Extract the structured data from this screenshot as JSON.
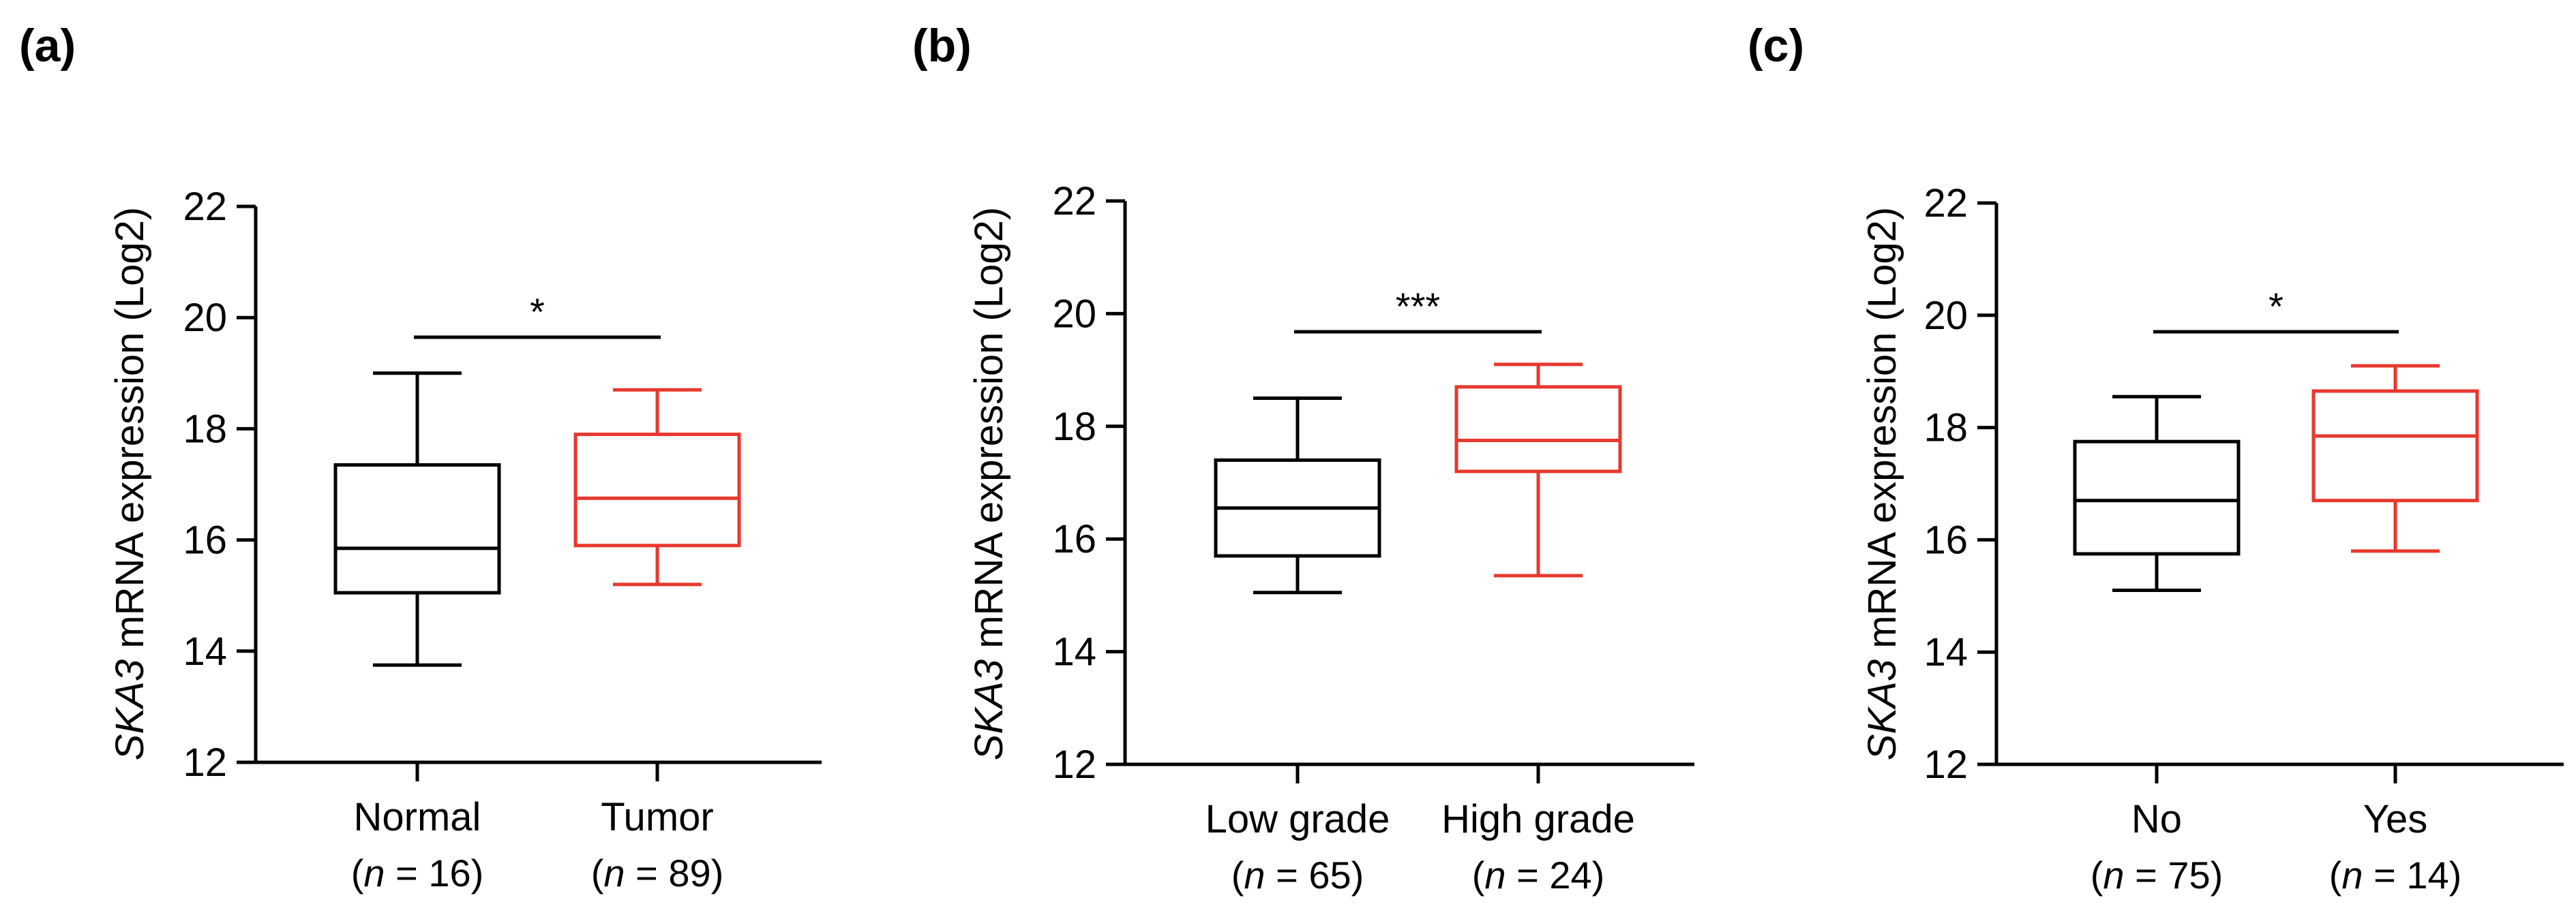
{
  "chart_data": [
    {
      "type": "box",
      "panel": "(a)",
      "ylabel_gene": "SKA3",
      "ylabel_rest": " mRNA expression (Log2)",
      "ylim": [
        12,
        22
      ],
      "yticks": [
        12,
        14,
        16,
        18,
        20,
        22
      ],
      "significance": "*",
      "groups": [
        {
          "name": "Normal",
          "n_prefix": "(",
          "n_italic": "n",
          "n_suffix": " = 16)",
          "color": "#000000",
          "whisker_low": 13.75,
          "q1": 15.05,
          "median": 15.85,
          "q3": 17.35,
          "whisker_high": 19.0
        },
        {
          "name": "Tumor",
          "n_prefix": "(",
          "n_italic": "n",
          "n_suffix": " = 89)",
          "color": "#e8382d",
          "whisker_low": 15.2,
          "q1": 15.9,
          "median": 16.75,
          "q3": 17.9,
          "whisker_high": 18.7
        }
      ]
    },
    {
      "type": "box",
      "panel": "(b)",
      "ylabel_gene": "SKA3",
      "ylabel_rest": " mRNA expression (Log2)",
      "ylim": [
        12,
        22
      ],
      "yticks": [
        12,
        14,
        16,
        18,
        20,
        22
      ],
      "significance": "***",
      "groups": [
        {
          "name": "Low grade",
          "n_prefix": "(",
          "n_italic": "n",
          "n_suffix": " = 65)",
          "color": "#000000",
          "whisker_low": 15.05,
          "q1": 15.7,
          "median": 16.55,
          "q3": 17.4,
          "whisker_high": 18.5
        },
        {
          "name": "High grade",
          "n_prefix": "(",
          "n_italic": "n",
          "n_suffix": " = 24)",
          "color": "#e8382d",
          "whisker_low": 15.35,
          "q1": 17.2,
          "median": 17.75,
          "q3": 18.7,
          "whisker_high": 19.1
        }
      ]
    },
    {
      "type": "box",
      "panel": "(c)",
      "ylabel_gene": "SKA3",
      "ylabel_rest": " mRNA expression (Log2)",
      "ylim": [
        12,
        22
      ],
      "yticks": [
        12,
        14,
        16,
        18,
        20,
        22
      ],
      "significance": "*",
      "groups": [
        {
          "name": "No",
          "n_prefix": "(",
          "n_italic": "n",
          "n_suffix": " = 75)",
          "color": "#000000",
          "whisker_low": 15.1,
          "q1": 15.75,
          "median": 16.7,
          "q3": 17.75,
          "whisker_high": 18.55
        },
        {
          "name": "Yes",
          "n_prefix": "(",
          "n_italic": "n",
          "n_suffix": " = 14)",
          "color": "#e8382d",
          "whisker_low": 15.8,
          "q1": 16.7,
          "median": 17.85,
          "q3": 18.65,
          "whisker_high": 19.1
        }
      ]
    }
  ]
}
